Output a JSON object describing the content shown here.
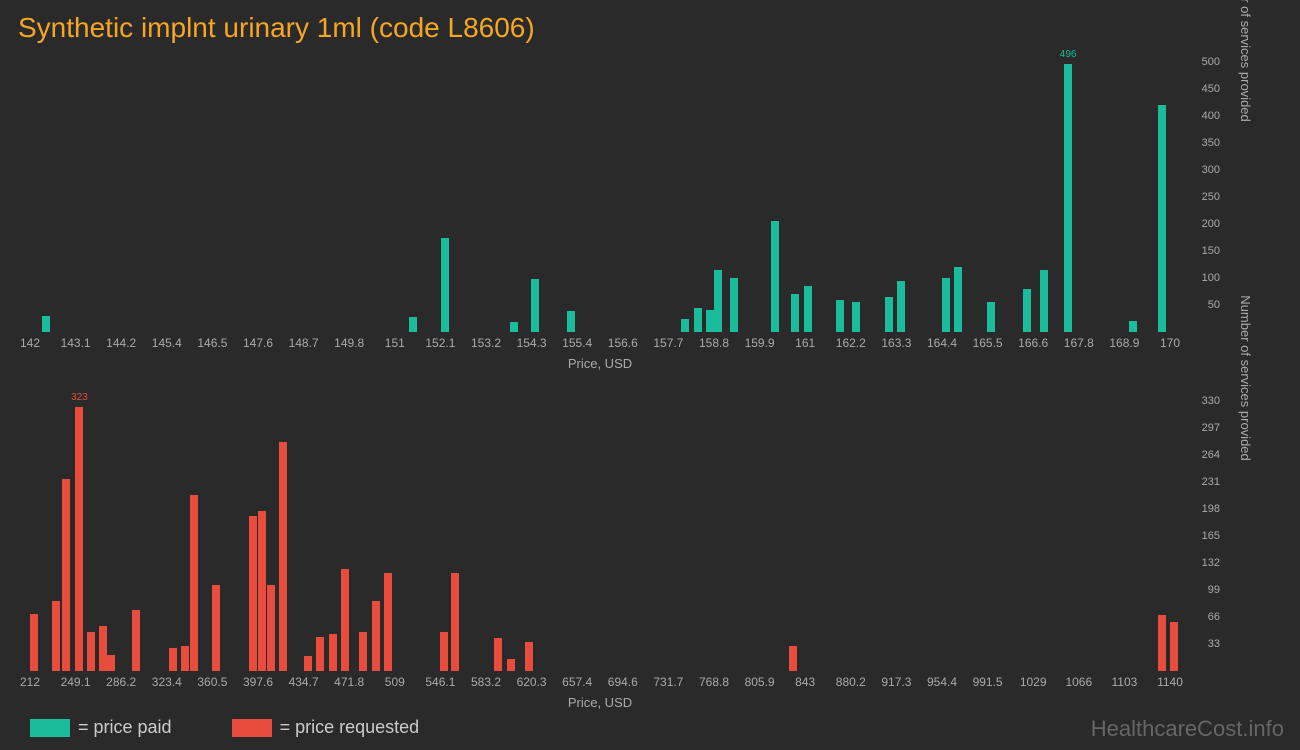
{
  "title": "Synthetic implnt urinary 1ml (code L8606)",
  "watermark": "HealthcareCost.info",
  "x_label": "Price, USD",
  "y_label": "Number of services provided",
  "colors": {
    "background": "#2a2a2a",
    "title": "#f5a623",
    "text": "#aaaaaa",
    "paid": "#1abc9c",
    "requested": "#e74c3c",
    "watermark": "#666666"
  },
  "legend": [
    {
      "color": "#1abc9c",
      "label": "= price paid"
    },
    {
      "color": "#e74c3c",
      "label": "= price requested"
    }
  ],
  "chart1": {
    "type": "bar",
    "color": "#1abc9c",
    "x_min": 142,
    "x_max": 170,
    "y_min": 0,
    "y_max": 500,
    "x_ticks": [
      "142",
      "143.1",
      "144.2",
      "145.4",
      "146.5",
      "147.6",
      "148.7",
      "149.8",
      "151",
      "152.1",
      "153.2",
      "154.3",
      "155.4",
      "156.6",
      "157.7",
      "158.8",
      "159.9",
      "161",
      "162.2",
      "163.3",
      "164.4",
      "165.5",
      "166.6",
      "167.8",
      "168.9",
      "170"
    ],
    "y_ticks": [
      50,
      100,
      150,
      200,
      250,
      300,
      350,
      400,
      450,
      500
    ],
    "bars": [
      {
        "x": 142.3,
        "y": 30
      },
      {
        "x": 151.3,
        "y": 28
      },
      {
        "x": 152.1,
        "y": 175
      },
      {
        "x": 153.8,
        "y": 18
      },
      {
        "x": 154.3,
        "y": 98
      },
      {
        "x": 155.2,
        "y": 38
      },
      {
        "x": 158.0,
        "y": 25
      },
      {
        "x": 158.3,
        "y": 45
      },
      {
        "x": 158.6,
        "y": 40
      },
      {
        "x": 158.8,
        "y": 115
      },
      {
        "x": 159.2,
        "y": 100
      },
      {
        "x": 160.2,
        "y": 205
      },
      {
        "x": 160.7,
        "y": 70
      },
      {
        "x": 161.0,
        "y": 85
      },
      {
        "x": 161.8,
        "y": 60
      },
      {
        "x": 162.2,
        "y": 55
      },
      {
        "x": 163.0,
        "y": 65
      },
      {
        "x": 163.3,
        "y": 95
      },
      {
        "x": 164.4,
        "y": 100
      },
      {
        "x": 164.7,
        "y": 120
      },
      {
        "x": 165.5,
        "y": 55
      },
      {
        "x": 166.4,
        "y": 80
      },
      {
        "x": 166.8,
        "y": 115
      },
      {
        "x": 167.4,
        "y": 496,
        "label": "496"
      },
      {
        "x": 169.0,
        "y": 20
      },
      {
        "x": 169.7,
        "y": 420
      }
    ]
  },
  "chart2": {
    "type": "bar",
    "color": "#e74c3c",
    "x_min": 212,
    "x_max": 1140,
    "y_min": 0,
    "y_max": 330,
    "x_ticks": [
      "212",
      "249.1",
      "286.2",
      "323.4",
      "360.5",
      "397.6",
      "434.7",
      "471.8",
      "509",
      "546.1",
      "583.2",
      "620.3",
      "657.4",
      "694.6",
      "731.7",
      "768.8",
      "805.9",
      "843",
      "880.2",
      "917.3",
      "954.4",
      "991.5",
      "1029",
      "1066",
      "1103",
      "1140"
    ],
    "y_ticks": [
      33,
      66,
      99,
      132,
      165,
      198,
      231,
      264,
      297,
      330
    ],
    "bars": [
      {
        "x": 212,
        "y": 70
      },
      {
        "x": 230,
        "y": 85
      },
      {
        "x": 238,
        "y": 235
      },
      {
        "x": 249,
        "y": 323,
        "label": "323"
      },
      {
        "x": 258,
        "y": 48
      },
      {
        "x": 268,
        "y": 55
      },
      {
        "x": 275,
        "y": 20
      },
      {
        "x": 295,
        "y": 75
      },
      {
        "x": 325,
        "y": 28
      },
      {
        "x": 335,
        "y": 30
      },
      {
        "x": 342,
        "y": 215
      },
      {
        "x": 360,
        "y": 105
      },
      {
        "x": 390,
        "y": 190
      },
      {
        "x": 398,
        "y": 195
      },
      {
        "x": 405,
        "y": 105
      },
      {
        "x": 415,
        "y": 280
      },
      {
        "x": 435,
        "y": 18
      },
      {
        "x": 445,
        "y": 42
      },
      {
        "x": 455,
        "y": 45
      },
      {
        "x": 465,
        "y": 125
      },
      {
        "x": 480,
        "y": 48
      },
      {
        "x": 490,
        "y": 85
      },
      {
        "x": 500,
        "y": 120
      },
      {
        "x": 546,
        "y": 48
      },
      {
        "x": 555,
        "y": 120
      },
      {
        "x": 590,
        "y": 40
      },
      {
        "x": 600,
        "y": 15
      },
      {
        "x": 615,
        "y": 35
      },
      {
        "x": 830,
        "y": 30
      },
      {
        "x": 1130,
        "y": 68
      },
      {
        "x": 1140,
        "y": 60
      }
    ]
  }
}
